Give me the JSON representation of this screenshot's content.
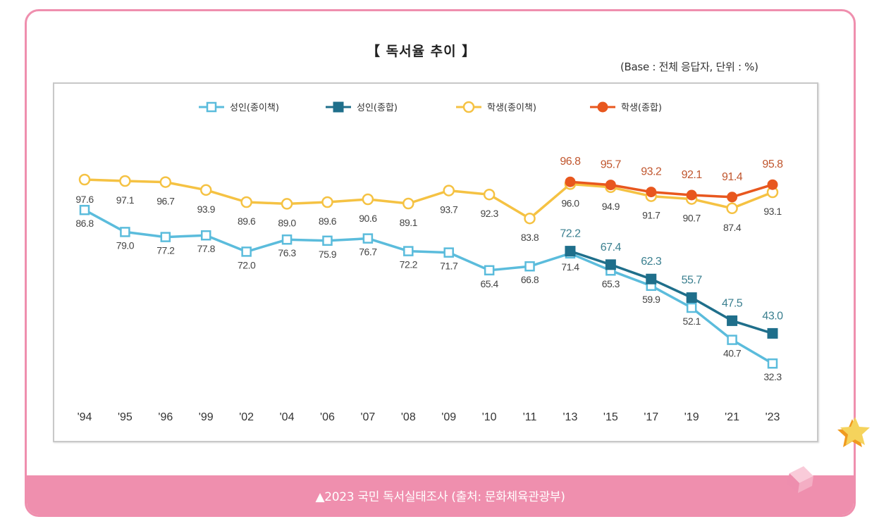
{
  "chart_data": {
    "type": "line",
    "title": "【 독서율 추이 】",
    "subtitle": "(Base : 전체 응답자, 단위 : %)",
    "xlabel": "",
    "ylabel": "",
    "ylim": [
      25,
      100
    ],
    "grid": false,
    "legend_position": "top-center",
    "categories": [
      "'94",
      "'95",
      "'96",
      "'99",
      "'02",
      "'04",
      "'06",
      "'07",
      "'08",
      "'09",
      "'10",
      "'11",
      "'13",
      "'15",
      "'17",
      "'19",
      "'21",
      "'23"
    ],
    "series": [
      {
        "name": "성인(종이책)",
        "key": "adult_paper",
        "color": "#5bbcdc",
        "marker": "square-open",
        "label_color": "#444444",
        "values": [
          86.8,
          79.0,
          77.2,
          77.8,
          72.0,
          76.3,
          75.9,
          76.7,
          72.2,
          71.7,
          65.4,
          66.8,
          71.4,
          65.3,
          59.9,
          52.1,
          40.7,
          32.3
        ]
      },
      {
        "name": "성인(종합)",
        "key": "adult_total",
        "color": "#1f6f8b",
        "marker": "square-filled",
        "label_color": "#3a7f8f",
        "values": [
          null,
          null,
          null,
          null,
          null,
          null,
          null,
          null,
          null,
          null,
          null,
          null,
          72.2,
          67.4,
          62.3,
          55.7,
          47.5,
          43.0
        ]
      },
      {
        "name": "학생(종이책)",
        "key": "student_paper",
        "color": "#f5c243",
        "marker": "circle-open",
        "label_color": "#444444",
        "values": [
          97.6,
          97.1,
          96.7,
          93.9,
          89.6,
          89.0,
          89.6,
          90.6,
          89.1,
          93.7,
          92.3,
          83.8,
          96.0,
          94.9,
          91.7,
          90.7,
          87.4,
          93.1
        ]
      },
      {
        "name": "학생(종합)",
        "key": "student_total",
        "color": "#e8571e",
        "marker": "circle-filled",
        "label_color": "#c0562e",
        "values": [
          null,
          null,
          null,
          null,
          null,
          null,
          null,
          null,
          null,
          null,
          null,
          null,
          96.8,
          95.7,
          93.2,
          92.1,
          91.4,
          95.8
        ]
      }
    ]
  },
  "footer": {
    "caption": "▲2023 국민 독서실태조사 (출처: 문화체육관광부)"
  },
  "decorations": {
    "star_icon": "star",
    "cube_icon": "cube"
  },
  "colors": {
    "card_border": "#ef8fae",
    "footer_bg": "#ef8fae"
  }
}
